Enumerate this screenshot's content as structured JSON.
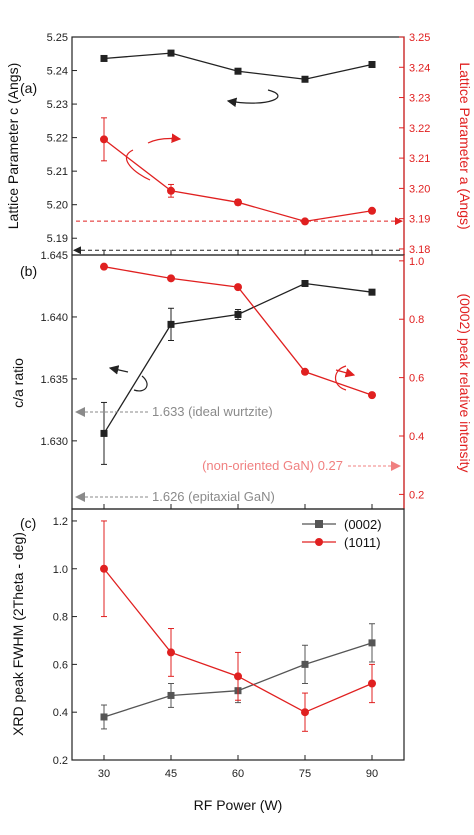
{
  "colors": {
    "black_series": "#222222",
    "red_series": "#e02020",
    "gray_series": "#555555",
    "annot_gray": "#8a8a8a",
    "annot_red": "#f08080"
  },
  "chart_data": [
    {
      "type": "line",
      "panel": "(a)",
      "x": [
        30,
        45,
        60,
        75,
        90
      ],
      "ylabel": "Lattice Parameter c (Angs)",
      "y2label": "Lattice Parameter a (Angs)",
      "ylim": [
        5.185,
        5.25
      ],
      "y2lim": [
        3.178,
        3.25
      ],
      "yticks": [
        "5.19",
        "5.20",
        "5.21",
        "5.22",
        "5.23",
        "5.24",
        "5.25"
      ],
      "y2ticks": [
        "3.18",
        "3.19",
        "3.20",
        "3.21",
        "3.22",
        "3.23",
        "3.24",
        "3.25"
      ],
      "series": [
        {
          "axis": "left",
          "values": [
            5.2436,
            5.2452,
            5.2398,
            5.2374,
            5.2418
          ],
          "errors": [
            0,
            0,
            0,
            0,
            0
          ]
        },
        {
          "axis": "right",
          "values": [
            3.2162,
            3.1992,
            3.1954,
            3.1891,
            3.1926
          ],
          "errors": [
            0.0071,
            0.0021,
            0.0009,
            0.0003,
            0.0003
          ]
        }
      ],
      "ref_lines": [
        {
          "axis": "left",
          "y": 5.1864,
          "color": "black"
        },
        {
          "axis": "right",
          "y": 3.1892,
          "color": "red"
        }
      ]
    },
    {
      "type": "line",
      "panel": "(b)",
      "x": [
        30,
        45,
        60,
        75,
        90
      ],
      "ylabel": "c/a ratio",
      "y2label": "(0002) peak relative intensity",
      "ylim": [
        1.6245,
        1.645
      ],
      "y2lim": [
        0.15,
        1.02
      ],
      "yticks": [
        "1.630",
        "1.635",
        "1.640",
        "1.645"
      ],
      "y2ticks": [
        "0.2",
        "0.4",
        "0.6",
        "0.8",
        "1.0"
      ],
      "series": [
        {
          "axis": "left",
          "values": [
            1.6306,
            1.6394,
            1.6402,
            1.6427,
            1.642
          ],
          "errors": [
            0.0025,
            0.0013,
            0.0004,
            0,
            0
          ]
        },
        {
          "axis": "right",
          "values": [
            0.98,
            0.94,
            0.91,
            0.62,
            0.54
          ],
          "errors": [
            0,
            0,
            0,
            0,
            0
          ]
        }
      ],
      "annotations": [
        {
          "text": "1.633 (ideal wurtzite)",
          "axis": "left",
          "y": 1.633
        },
        {
          "text": "(non-oriented GaN) 0.27",
          "axis": "right",
          "y": 0.27
        },
        {
          "text": "1.626 (epitaxial GaN)",
          "axis": "left",
          "y": 1.626
        }
      ]
    },
    {
      "type": "line",
      "panel": "(c)",
      "x": [
        30,
        45,
        60,
        75,
        90
      ],
      "xlabel": "RF Power (W)",
      "xticks": [
        "30",
        "45",
        "60",
        "75",
        "90"
      ],
      "ylabel": "XRD peak FWHM (2Theta - deg)",
      "ylim": [
        0.2,
        1.25
      ],
      "yticks": [
        "0.2",
        "0.4",
        "0.6",
        "0.8",
        "1.0",
        "1.2"
      ],
      "legend": "top-right",
      "series": [
        {
          "name": "(0002)",
          "values": [
            0.38,
            0.47,
            0.49,
            0.6,
            0.69
          ],
          "errors": [
            0.05,
            0.05,
            0.05,
            0.08,
            0.08
          ]
        },
        {
          "name": "(1011)",
          "values": [
            1.0,
            0.65,
            0.55,
            0.4,
            0.52
          ],
          "errors": [
            0.2,
            0.1,
            0.1,
            0.08,
            0.08
          ]
        }
      ]
    }
  ]
}
